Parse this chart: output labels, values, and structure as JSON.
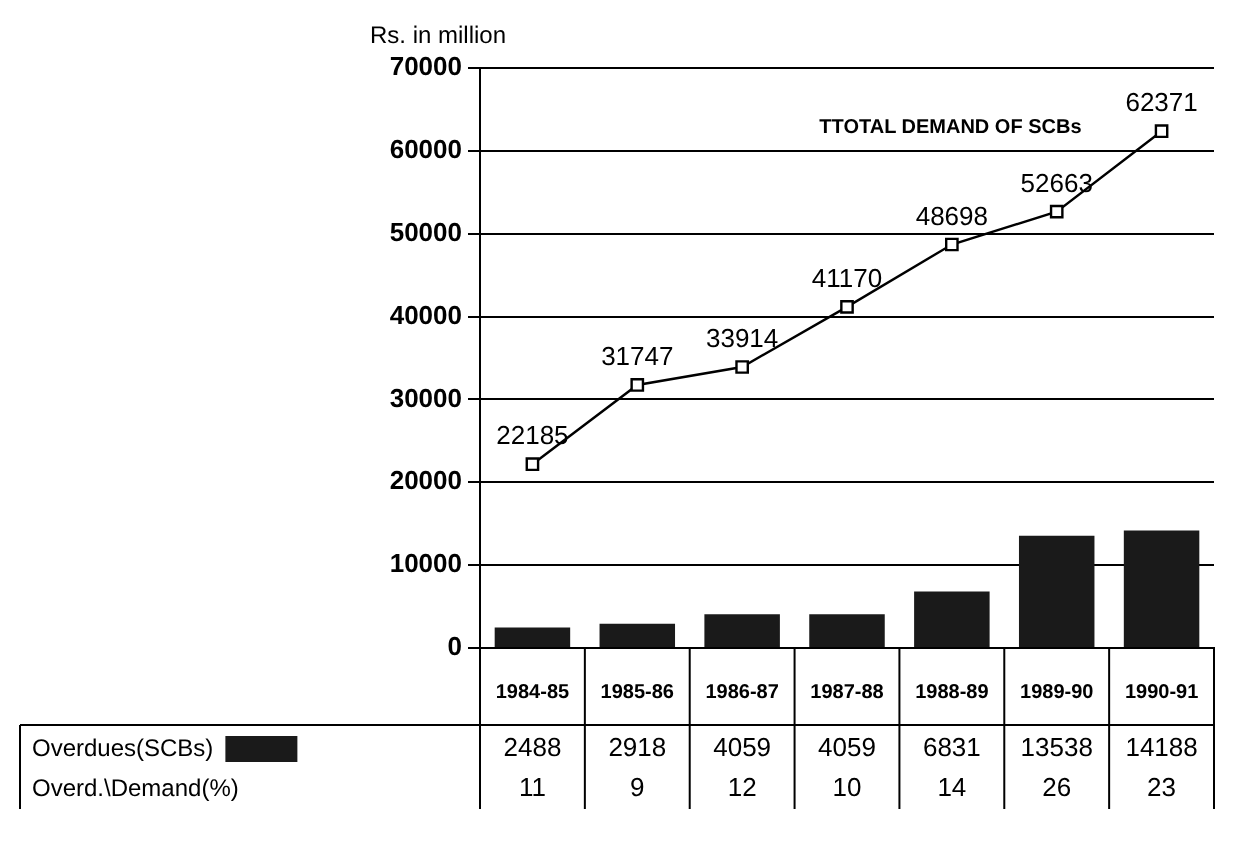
{
  "chart_data": {
    "type": "bar",
    "ylabel": "Rs. in million",
    "categories": [
      "1984-85",
      "1985-86",
      "1986-87",
      "1987-88",
      "1988-89",
      "1989-90",
      "1990-91"
    ],
    "series": [
      {
        "name": "TTOTAL DEMAND OF SCBs",
        "type": "line",
        "color": "#000000",
        "values": [
          22185,
          31747,
          33914,
          41170,
          48698,
          52663,
          62371
        ]
      },
      {
        "name": "Overdues(SCBs)",
        "color": "#1a1a1a",
        "values": [
          2488,
          2918,
          4059,
          4059,
          6831,
          13538,
          14188
        ]
      }
    ],
    "ylim": [
      0,
      70000
    ],
    "yticks": [
      0,
      10000,
      20000,
      30000,
      40000,
      50000,
      60000,
      70000
    ],
    "grid": "y",
    "legend": "bottom",
    "marker": "square",
    "data_labels": true,
    "annotations": [
      "Overd.\\Demand(%)",
      "11",
      "9",
      "12",
      "10",
      "14",
      "26",
      "23"
    ]
  }
}
